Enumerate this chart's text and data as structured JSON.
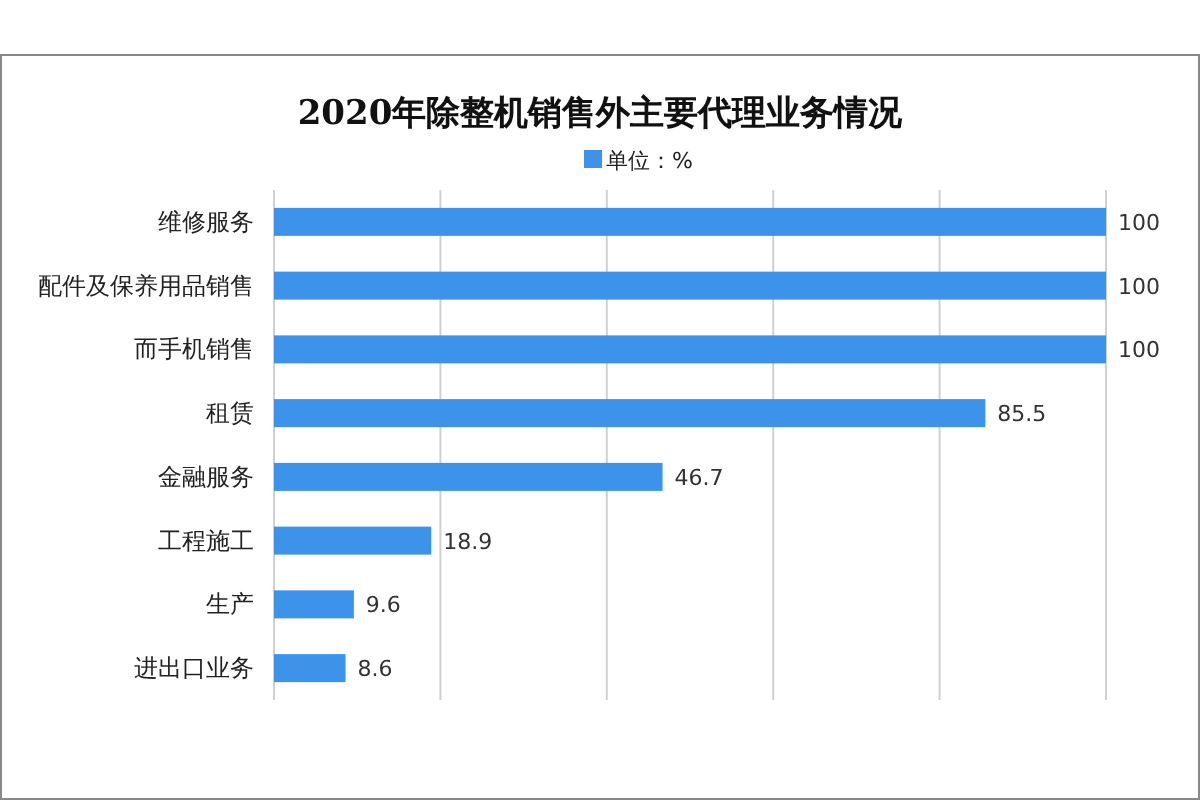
{
  "chart_data": {
    "type": "bar",
    "orientation": "horizontal",
    "title": "2020年除整机销售外主要代理业务情况",
    "categories": [
      "维修服务",
      "配件及保养用品销售",
      "而手机销售",
      "租赁",
      "金融服务",
      "工程施工",
      "生产",
      "进出口业务"
    ],
    "series": [
      {
        "name": "单位：%",
        "color": "#3d92ea",
        "values": [
          100,
          100,
          100,
          85.5,
          46.7,
          18.9,
          9.6,
          8.6
        ]
      }
    ],
    "xlim": [
      0,
      100
    ],
    "xticks": [
      {
        "value": 0,
        "label": null
      },
      {
        "value": 20,
        "label": null
      },
      {
        "value": 40,
        "label": null
      },
      {
        "value": 60,
        "label": null
      },
      {
        "value": 80,
        "label": null
      },
      {
        "value": 100,
        "label": null
      }
    ],
    "tick_labels": "y",
    "grid": "x",
    "legend": "top",
    "data_labels": true
  }
}
